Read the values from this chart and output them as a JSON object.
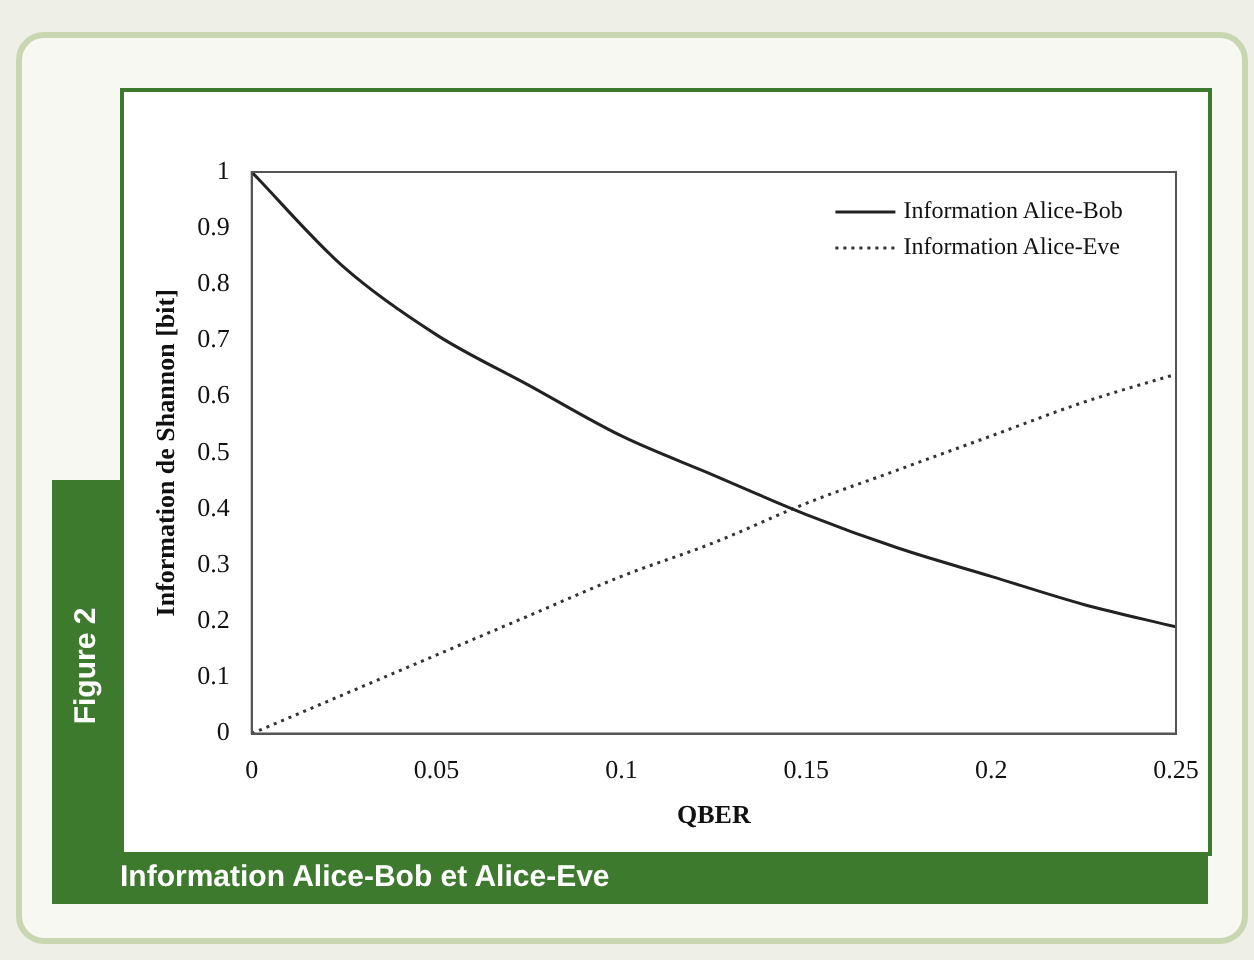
{
  "chart_data": {
    "type": "line",
    "xlabel": "QBER",
    "ylabel": "Information de Shannon [bit]",
    "x": [
      0,
      0.025,
      0.05,
      0.075,
      0.1,
      0.125,
      0.15,
      0.175,
      0.2,
      0.225,
      0.25
    ],
    "series": [
      {
        "name": "Information Alice-Bob",
        "color": "#222222",
        "line_style": "solid",
        "values": [
          1,
          0.83,
          0.71,
          0.62,
          0.53,
          0.46,
          0.39,
          0.33,
          0.28,
          0.23,
          0.19
        ]
      },
      {
        "name": "Information Alice-Eve",
        "color": "#333333",
        "line_style": "dotted",
        "values": [
          0,
          0.07,
          0.14,
          0.21,
          0.28,
          0.34,
          0.41,
          0.47,
          0.53,
          0.59,
          0.64
        ]
      }
    ],
    "xlim": [
      0,
      0.25
    ],
    "xticks": [
      0,
      0.05,
      0.1,
      0.15,
      0.2,
      0.25
    ],
    "ylim": [
      0,
      1
    ],
    "yticks": [
      0,
      0.1,
      0.2,
      0.3,
      0.4,
      0.5,
      0.6,
      0.7,
      0.8,
      0.9,
      1
    ],
    "grid": false,
    "legend": "top right",
    "marker": "none",
    "annotations": [
      "Figure 2",
      "Information Alice-Bob et Alice-Eve"
    ]
  }
}
